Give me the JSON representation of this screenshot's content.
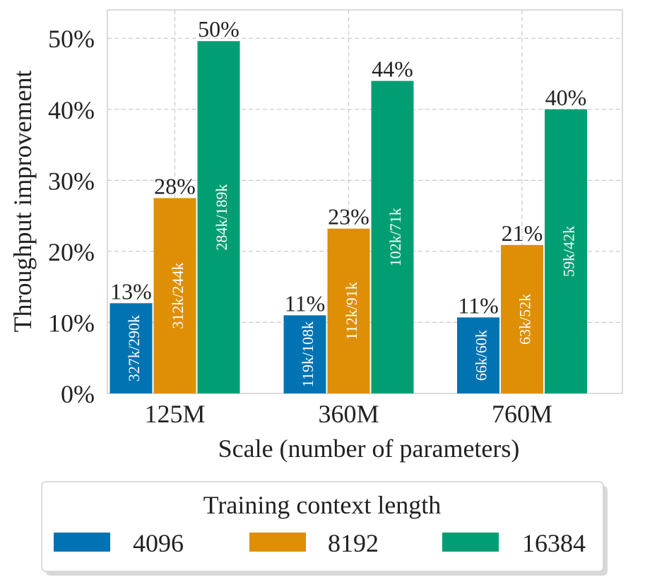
{
  "chart_data": {
    "type": "bar",
    "title": "",
    "xlabel": "Scale (number of parameters)",
    "ylabel": "Throughput improvement",
    "categories": [
      "125M",
      "360M",
      "760M"
    ],
    "ylim": [
      0,
      54
    ],
    "yticks": [
      0,
      10,
      20,
      30,
      40,
      50
    ],
    "ytick_labels": [
      "0%",
      "10%",
      "20%",
      "30%",
      "40%",
      "50%"
    ],
    "grid": true,
    "series": [
      {
        "name": "4096",
        "color": "#0173b2",
        "values": [
          12.7,
          11.0,
          10.7
        ],
        "value_labels": [
          "13%",
          "11%",
          "11%"
        ],
        "bar_labels": [
          "327k/290k",
          "119k/108k",
          "66k/60k"
        ]
      },
      {
        "name": "8192",
        "color": "#de8f05",
        "values": [
          27.5,
          23.2,
          20.9
        ],
        "value_labels": [
          "28%",
          "23%",
          "21%"
        ],
        "bar_labels": [
          "312k/244k",
          "112k/91k",
          "63k/52k"
        ]
      },
      {
        "name": "16384",
        "color": "#029e73",
        "values": [
          49.6,
          44.0,
          40.0
        ],
        "value_labels": [
          "50%",
          "44%",
          "40%"
        ],
        "bar_labels": [
          "284k/189k",
          "102k/71k",
          "59k/42k"
        ]
      }
    ],
    "legend": {
      "title": "Training context length",
      "placement": "bottom-center"
    }
  }
}
